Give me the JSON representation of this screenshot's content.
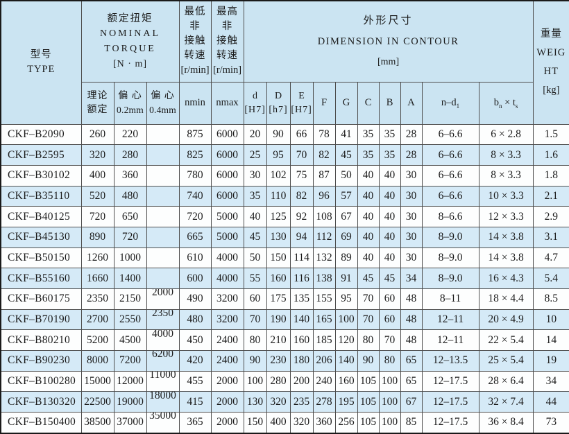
{
  "colors": {
    "header_bg": "#cbe4f2",
    "stripe_bg": "#d5eaf7",
    "row_bg": "#fdfefe",
    "grid_line": "#4d4d4d",
    "outer_border": "#1a1a1a",
    "text": "#1b1b1b"
  },
  "header": {
    "type": {
      "l1": "型号",
      "l2": "TYPE"
    },
    "torque": {
      "l1": "额定扭矩",
      "l2": "NOMINAL",
      "l3": "TORQUE",
      "l4": "[N · m]"
    },
    "nmin_group": {
      "l1": "最低非",
      "l2": "接触",
      "l3": "转速",
      "l4": "[r/min]"
    },
    "nmax_group": {
      "l1": "最高非",
      "l2": "接触",
      "l3": "转速",
      "l4": "[r/min]"
    },
    "dimension": {
      "l1": "外形尺寸",
      "l2": "DIMENSION IN CONTOUR",
      "l3": "[mm]"
    },
    "weight": {
      "l1": "重量",
      "l2": "WEIG",
      "l3": "HT",
      "l4": "[kg]"
    },
    "sub": {
      "theory": {
        "l1": "理论",
        "l2": "额定"
      },
      "ecc02": {
        "l1": "偏 心",
        "l2": "0.2mm"
      },
      "ecc04": {
        "l1": "偏 心",
        "l2": "0.4mm"
      },
      "nmin": "nmin",
      "nmax": "nmax",
      "d": {
        "l1": "d",
        "l2": "[H7]"
      },
      "D": {
        "l1": "D",
        "l2": "[h7]"
      },
      "E": {
        "l1": "E",
        "l2": "[H7]"
      },
      "F": "F",
      "G": "G",
      "C": "C",
      "B": "B",
      "A": "A",
      "nd1": {
        "main": "n–d",
        "sub": "1"
      },
      "bt": {
        "p1": "b",
        "s1": "n",
        "p2": " × t",
        "s2": "s"
      }
    }
  },
  "chart_data": {
    "type": "table",
    "title": "CKF-B series specification table",
    "columns": [
      "型号 TYPE",
      "理论额定 [N·m]",
      "偏心0.2mm [N·m]",
      "偏心0.4mm [N·m]",
      "nmin [r/min]",
      "nmax [r/min]",
      "d [H7]",
      "D [h7]",
      "E [H7]",
      "F",
      "G",
      "C",
      "B",
      "A",
      "n–d1",
      "bn×ts",
      "重量 WEIGHT [kg]"
    ]
  },
  "table": {
    "row_keys": [
      "type",
      "torque_theory",
      "torque_ecc02",
      "torque_ecc04",
      "nmin",
      "nmax",
      "d",
      "D",
      "E",
      "F",
      "G",
      "C",
      "B",
      "A",
      "nd1",
      "bt",
      "weight"
    ],
    "rows": [
      [
        "CKF–B2090",
        "260",
        "220",
        "",
        "875",
        "6000",
        "20",
        "90",
        "66",
        "78",
        "41",
        "35",
        "35",
        "28",
        "6–6.6",
        "6 × 2.8",
        "1.5"
      ],
      [
        "CKF–B2595",
        "320",
        "280",
        "",
        "825",
        "6000",
        "25",
        "95",
        "70",
        "82",
        "45",
        "35",
        "35",
        "28",
        "6–6.6",
        "8 × 3.3",
        "1.6"
      ],
      [
        "CKF–B30102",
        "400",
        "360",
        "",
        "780",
        "6000",
        "30",
        "102",
        "75",
        "87",
        "50",
        "40",
        "40",
        "30",
        "6–6.6",
        "8 × 3.3",
        "1.8"
      ],
      [
        "CKF–B35110",
        "520",
        "480",
        "",
        "740",
        "6000",
        "35",
        "110",
        "82",
        "96",
        "57",
        "40",
        "40",
        "30",
        "6–6.6",
        "10 × 3.3",
        "2.1"
      ],
      [
        "CKF–B40125",
        "720",
        "650",
        "",
        "720",
        "5000",
        "40",
        "125",
        "92",
        "108",
        "67",
        "40",
        "40",
        "30",
        "8–6.6",
        "12 × 3.3",
        "2.9"
      ],
      [
        "CKF–B45130",
        "890",
        "720",
        "",
        "665",
        "5000",
        "45",
        "130",
        "94",
        "112",
        "69",
        "40",
        "40",
        "30",
        "8–9.0",
        "14 × 3.8",
        "3.1"
      ],
      [
        "CKF–B50150",
        "1260",
        "1000",
        "",
        "610",
        "4000",
        "50",
        "150",
        "114",
        "132",
        "89",
        "40",
        "40",
        "30",
        "8–9.0",
        "14 × 3.8",
        "4.7"
      ],
      [
        "CKF–B55160",
        "1660",
        "1400",
        "",
        "600",
        "4000",
        "55",
        "160",
        "116",
        "138",
        "91",
        "45",
        "45",
        "34",
        "8–9.0",
        "16 × 4.3",
        "5.4"
      ],
      [
        "CKF–B60175",
        "2350",
        "2150",
        "2000",
        "490",
        "3200",
        "60",
        "175",
        "135",
        "155",
        "95",
        "70",
        "60",
        "48",
        "8–11",
        "18 × 4.4",
        "8.5"
      ],
      [
        "CKF–B70190",
        "2700",
        "2550",
        "2350",
        "480",
        "3200",
        "70",
        "190",
        "140",
        "165",
        "100",
        "70",
        "60",
        "48",
        "12–11",
        "20 × 4.9",
        "10"
      ],
      [
        "CKF–B80210",
        "5200",
        "4500",
        "4000",
        "450",
        "2400",
        "80",
        "210",
        "160",
        "185",
        "120",
        "80",
        "70",
        "48",
        "12–11",
        "22 × 5.4",
        "14"
      ],
      [
        "CKF–B90230",
        "8000",
        "7200",
        "6200",
        "420",
        "2400",
        "90",
        "230",
        "180",
        "206",
        "140",
        "90",
        "80",
        "65",
        "12–13.5",
        "25 × 5.4",
        "19"
      ],
      [
        "CKF–B100280",
        "15000",
        "12000",
        "11000",
        "455",
        "2000",
        "100",
        "280",
        "200",
        "240",
        "160",
        "105",
        "100",
        "65",
        "12–17.5",
        "28 × 6.4",
        "34"
      ],
      [
        "CKF–B130320",
        "22500",
        "19000",
        "18000",
        "415",
        "2000",
        "130",
        "320",
        "235",
        "278",
        "195",
        "105",
        "100",
        "67",
        "12–17.5",
        "32 × 7.4",
        "44"
      ],
      [
        "CKF–B150400",
        "38500",
        "37000",
        "35000",
        "365",
        "2000",
        "150",
        "400",
        "320",
        "360",
        "256",
        "105",
        "100",
        "85",
        "12–17.5",
        "36 × 8.4",
        "73"
      ]
    ]
  }
}
